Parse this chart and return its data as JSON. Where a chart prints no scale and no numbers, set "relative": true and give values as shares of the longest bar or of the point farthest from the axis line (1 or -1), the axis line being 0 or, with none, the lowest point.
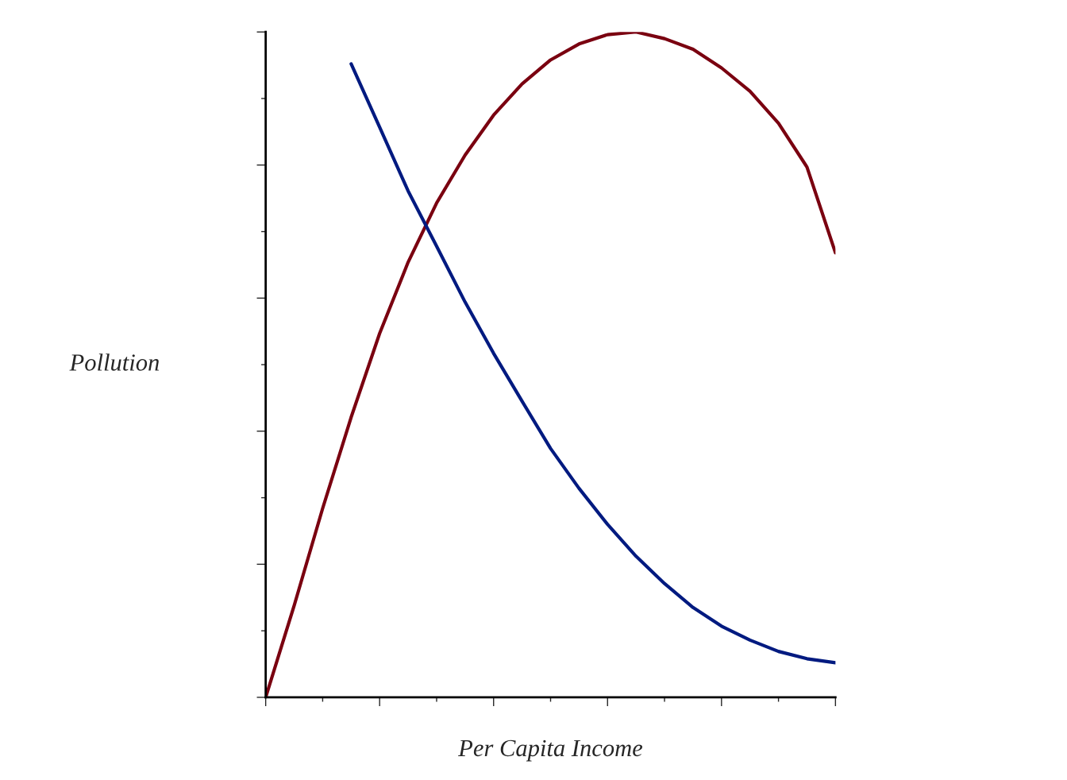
{
  "chart_data": {
    "type": "line",
    "relative": true,
    "xlabel": "Per Capita Income",
    "ylabel": "Pollution",
    "grid": false,
    "tick_labels": false,
    "categories": [
      null,
      null,
      null,
      null,
      null,
      null,
      null,
      null,
      null,
      null,
      null,
      null,
      null,
      null,
      null,
      null,
      null,
      null,
      null,
      null,
      null
    ],
    "series": [
      {
        "color": "#7a0010",
        "values": [
          0,
          0.138,
          0.284,
          0.421,
          0.547,
          0.654,
          0.743,
          0.815,
          0.875,
          0.922,
          0.958,
          0.982,
          0.996,
          1,
          0.99,
          0.974,
          0.946,
          0.911,
          0.863,
          0.797,
          0.668
        ]
      },
      {
        "color": "#001a80",
        "values": [
          null,
          null,
          null,
          0.952,
          0.857,
          0.761,
          0.678,
          0.594,
          0.517,
          0.445,
          0.374,
          0.314,
          0.26,
          0.212,
          0.171,
          0.135,
          0.107,
          0.086,
          0.069,
          0.058,
          0.052
        ]
      }
    ]
  }
}
